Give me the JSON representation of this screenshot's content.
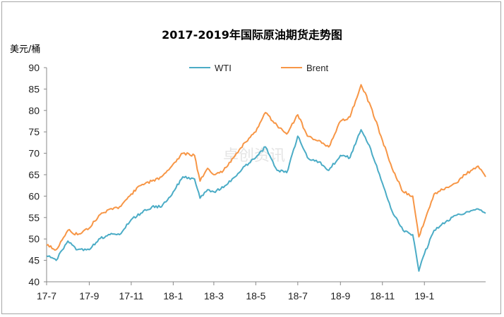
{
  "chart_data": {
    "type": "line",
    "title": "2017-2019年国际原油期货走势图",
    "ylabel": "美元/桶",
    "xlabel": "",
    "ylim": [
      40,
      90
    ],
    "yticks": [
      40,
      45,
      50,
      55,
      60,
      65,
      70,
      75,
      80,
      85,
      90
    ],
    "x_tick_labels": [
      "17-7",
      "17-9",
      "17-11",
      "18-1",
      "18-3",
      "18-5",
      "18-7",
      "18-9",
      "18-11",
      "19-1"
    ],
    "x_range": [
      "2017-07-01",
      "2019-03-31"
    ],
    "x_ticks": [
      "2017-07-01",
      "2017-09-01",
      "2017-11-01",
      "2018-01-01",
      "2018-03-01",
      "2018-05-01",
      "2018-07-01",
      "2018-09-01",
      "2018-11-01",
      "2019-01-01"
    ],
    "legend_position": "top-center",
    "grid": false,
    "watermark": "卓创资讯",
    "series": [
      {
        "name": "WTI",
        "color": "#4bacc6",
        "points": [
          [
            "2017-07-01",
            46.0
          ],
          [
            "2017-07-15",
            45.0
          ],
          [
            "2017-08-01",
            49.5
          ],
          [
            "2017-08-15",
            47.5
          ],
          [
            "2017-09-01",
            47.5
          ],
          [
            "2017-09-15",
            50.0
          ],
          [
            "2017-10-01",
            51.0
          ],
          [
            "2017-10-15",
            51.0
          ],
          [
            "2017-11-01",
            54.5
          ],
          [
            "2017-11-15",
            56.0
          ],
          [
            "2017-12-01",
            57.5
          ],
          [
            "2017-12-15",
            57.5
          ],
          [
            "2018-01-01",
            61.0
          ],
          [
            "2018-01-15",
            64.5
          ],
          [
            "2018-02-01",
            64.0
          ],
          [
            "2018-02-09",
            59.5
          ],
          [
            "2018-02-20",
            61.5
          ],
          [
            "2018-03-01",
            61.0
          ],
          [
            "2018-03-15",
            62.0
          ],
          [
            "2018-04-01",
            64.5
          ],
          [
            "2018-04-15",
            67.0
          ],
          [
            "2018-05-01",
            69.0
          ],
          [
            "2018-05-15",
            71.5
          ],
          [
            "2018-06-01",
            66.0
          ],
          [
            "2018-06-15",
            65.5
          ],
          [
            "2018-07-01",
            74.0
          ],
          [
            "2018-07-15",
            69.0
          ],
          [
            "2018-08-01",
            68.0
          ],
          [
            "2018-08-15",
            66.0
          ],
          [
            "2018-09-01",
            69.5
          ],
          [
            "2018-09-15",
            69.0
          ],
          [
            "2018-10-01",
            75.5
          ],
          [
            "2018-10-15",
            71.0
          ],
          [
            "2018-11-01",
            63.0
          ],
          [
            "2018-11-15",
            56.5
          ],
          [
            "2018-12-01",
            52.0
          ],
          [
            "2018-12-15",
            51.0
          ],
          [
            "2018-12-24",
            42.5
          ],
          [
            "2019-01-01",
            46.5
          ],
          [
            "2019-01-15",
            52.0
          ],
          [
            "2019-02-01",
            54.0
          ],
          [
            "2019-02-15",
            55.5
          ],
          [
            "2019-03-01",
            56.0
          ],
          [
            "2019-03-20",
            57.0
          ],
          [
            "2019-03-31",
            56.0
          ]
        ]
      },
      {
        "name": "Brent",
        "color": "#f79646",
        "points": [
          [
            "2017-07-01",
            48.5
          ],
          [
            "2017-07-15",
            47.5
          ],
          [
            "2017-08-01",
            52.0
          ],
          [
            "2017-08-15",
            51.0
          ],
          [
            "2017-09-01",
            52.5
          ],
          [
            "2017-09-15",
            55.5
          ],
          [
            "2017-10-01",
            57.0
          ],
          [
            "2017-10-15",
            57.5
          ],
          [
            "2017-11-01",
            60.5
          ],
          [
            "2017-11-15",
            62.5
          ],
          [
            "2017-12-01",
            63.5
          ],
          [
            "2017-12-15",
            64.5
          ],
          [
            "2018-01-01",
            67.5
          ],
          [
            "2018-01-15",
            70.0
          ],
          [
            "2018-02-01",
            69.5
          ],
          [
            "2018-02-09",
            63.5
          ],
          [
            "2018-02-20",
            66.5
          ],
          [
            "2018-03-01",
            65.0
          ],
          [
            "2018-03-15",
            66.0
          ],
          [
            "2018-04-01",
            69.5
          ],
          [
            "2018-04-15",
            72.5
          ],
          [
            "2018-05-01",
            75.0
          ],
          [
            "2018-05-15",
            79.5
          ],
          [
            "2018-06-01",
            76.5
          ],
          [
            "2018-06-15",
            74.5
          ],
          [
            "2018-07-01",
            79.0
          ],
          [
            "2018-07-15",
            74.0
          ],
          [
            "2018-08-01",
            73.0
          ],
          [
            "2018-08-15",
            71.5
          ],
          [
            "2018-09-01",
            77.5
          ],
          [
            "2018-09-15",
            78.5
          ],
          [
            "2018-10-01",
            86.0
          ],
          [
            "2018-10-15",
            81.0
          ],
          [
            "2018-11-01",
            73.0
          ],
          [
            "2018-11-15",
            66.5
          ],
          [
            "2018-12-01",
            61.0
          ],
          [
            "2018-12-15",
            60.0
          ],
          [
            "2018-12-24",
            50.5
          ],
          [
            "2019-01-01",
            54.0
          ],
          [
            "2019-01-15",
            60.5
          ],
          [
            "2019-02-01",
            62.0
          ],
          [
            "2019-02-15",
            63.0
          ],
          [
            "2019-03-01",
            65.0
          ],
          [
            "2019-03-20",
            67.0
          ],
          [
            "2019-03-31",
            64.5
          ]
        ]
      }
    ]
  }
}
